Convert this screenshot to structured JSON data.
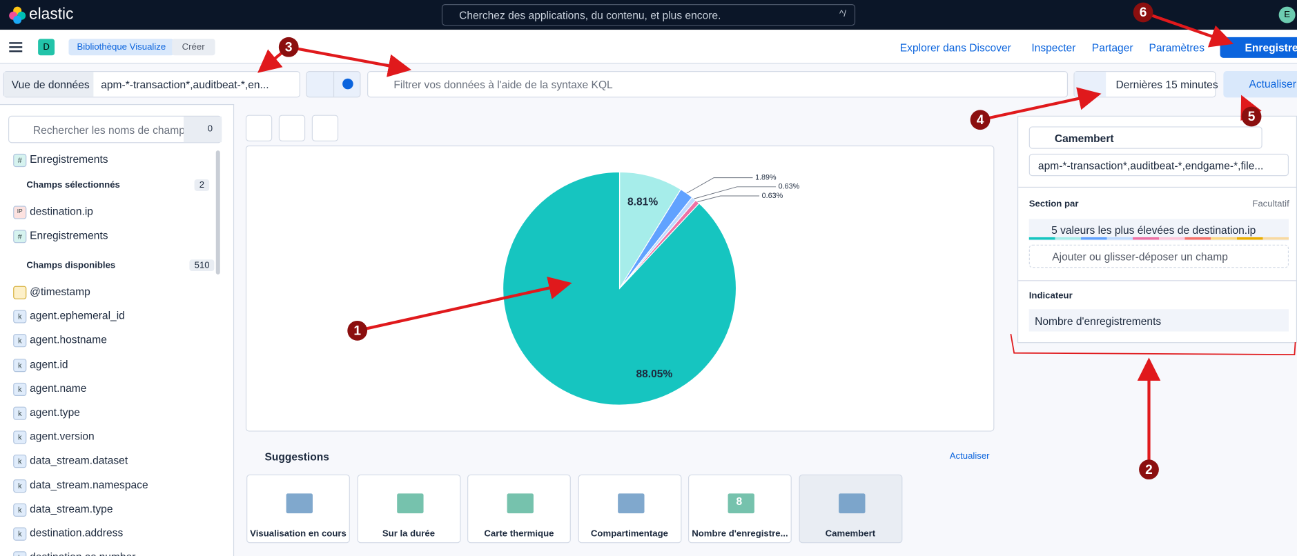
{
  "header": {
    "brand": "elastic",
    "search_placeholder": "Cherchez des applications, du contenu, et plus encore.",
    "search_shortcut": "^/",
    "avatar": "E"
  },
  "breadcrumbs": {
    "space": "D",
    "items": [
      "Bibliothèque Visualize",
      "Créer"
    ]
  },
  "top_actions": [
    "Explorer dans Discover",
    "Inspecter",
    "Partager",
    "Paramètres"
  ],
  "save": "Enregistrer",
  "query_bar": {
    "data_view_label": "Vue de données",
    "data_view": "apm-*-transaction*,auditbeat-*,en...",
    "placeholder": "Filtrer vos données à l'aide de la syntaxe KQL",
    "time": "Dernières 15 minutes",
    "refresh": "Actualiser"
  },
  "sidebar": {
    "search_placeholder": "Rechercher les noms de champ",
    "filter_count": 0,
    "records": {
      "icon": "#",
      "name": "Enregistrements"
    },
    "selected": {
      "title": "Champs sélectionnés",
      "count": 2,
      "fields": [
        {
          "icon": "IP",
          "name": "destination.ip"
        },
        {
          "icon": "#",
          "name": "Enregistrements"
        }
      ]
    },
    "available": {
      "title": "Champs disponibles",
      "count": 510,
      "fields": [
        {
          "name": "@timestamp"
        },
        {
          "icon": "k",
          "name": "agent.ephemeral_id"
        },
        {
          "icon": "k",
          "name": "agent.hostname"
        },
        {
          "icon": "k",
          "name": "agent.id"
        },
        {
          "icon": "k",
          "name": "agent.name"
        },
        {
          "icon": "k",
          "name": "agent.type"
        },
        {
          "icon": "k",
          "name": "agent.version"
        },
        {
          "icon": "k",
          "name": "data_stream.dataset"
        },
        {
          "icon": "k",
          "name": "data_stream.namespace"
        },
        {
          "icon": "k",
          "name": "data_stream.type"
        },
        {
          "icon": "k",
          "name": "destination.address"
        },
        {
          "icon": "k",
          "name": "destination.as.number"
        }
      ]
    }
  },
  "visualization": {
    "type": "pie",
    "values": [
      8.81,
      1.89,
      0.63,
      0.63,
      88.05
    ],
    "value_labels": [
      "8.81%",
      "1.89%",
      "0.63%",
      "0.63%",
      "88.05%"
    ],
    "colors": [
      "#a6edea",
      "#61a2ff",
      "#bfdbff",
      "#ee72a6",
      "#16c5c0"
    ]
  },
  "suggestions": {
    "title": "Suggestions",
    "refresh": "Actualiser",
    "metric_sample": 8,
    "items": [
      "Visualisation en cours",
      "Sur la durée",
      "Carte thermique",
      "Compartimentage",
      "Nombre d'enregistre...",
      "Camembert"
    ]
  },
  "config": {
    "chart_type": "Camembert",
    "data_view": "apm-*-transaction*,auditbeat-*,endgame-*,file...",
    "section_label": "Section par",
    "optional": "Facultatif",
    "section_value": "5 valeurs les plus élevées de destination.ip",
    "add_field": "Ajouter ou glisser-déposer un champ",
    "metric_label": "Indicateur",
    "metric_value": "Nombre d'enregistrements"
  },
  "annotations": [
    "1",
    "2",
    "3",
    "4",
    "5",
    "6"
  ]
}
